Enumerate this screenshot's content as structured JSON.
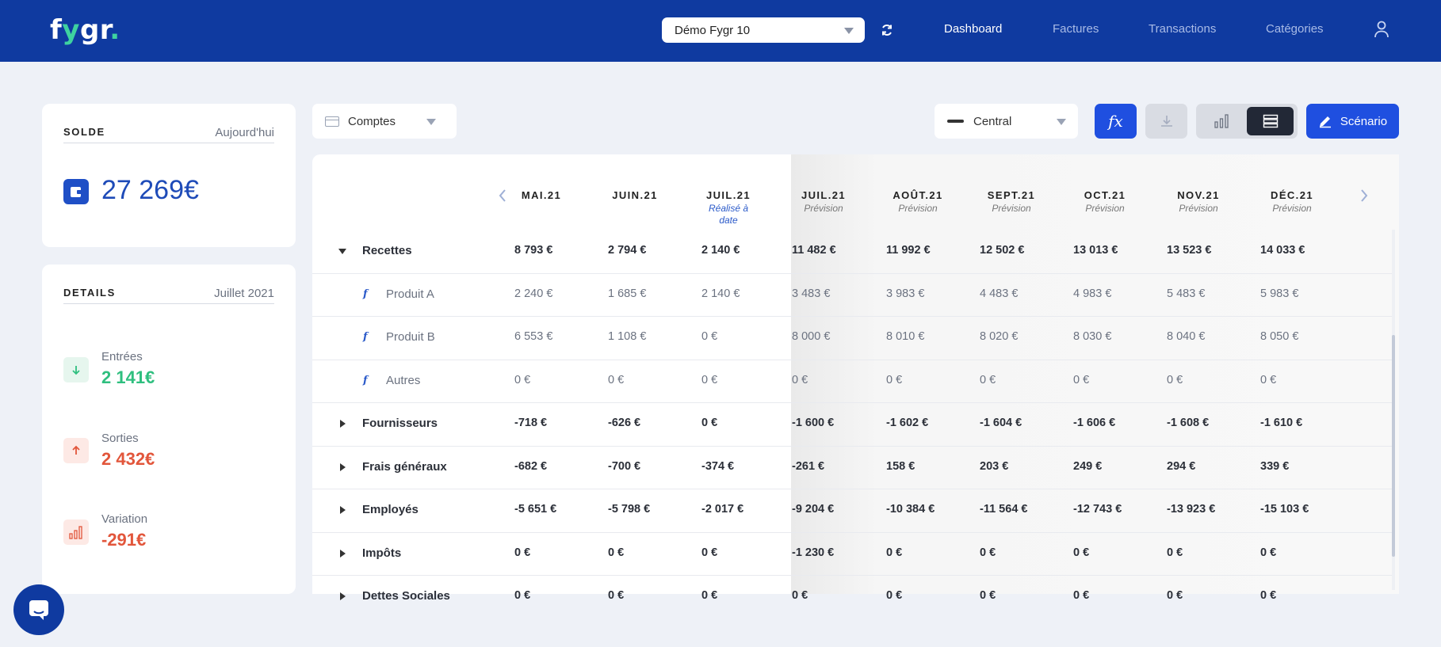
{
  "app": {
    "logo_main": "f",
    "logo_y": "y",
    "logo_rest": "gr",
    "logo_dot": "."
  },
  "header": {
    "company_value": "Démo Fygr 10",
    "nav": [
      {
        "label": "Dashboard",
        "active": true
      },
      {
        "label": "Factures"
      },
      {
        "label": "Transactions"
      },
      {
        "label": "Catégories"
      }
    ]
  },
  "solde": {
    "title": "SOLDE",
    "period": "Aujourd'hui",
    "amount": "27 269€"
  },
  "details": {
    "title": "DETAILS",
    "period": "Juillet 2021",
    "items": [
      {
        "label": "Entrées",
        "value": "2 141€",
        "color": "#2fbf7f"
      },
      {
        "label": "Sorties",
        "value": "2 432€",
        "color": "#e2563b"
      },
      {
        "label": "Variation",
        "value": "-291€",
        "color": "#e2563b"
      }
    ]
  },
  "toolbar": {
    "accounts_label": "Comptes",
    "scenario_select": "Central",
    "scenario_button": "Scénario",
    "fx_label": "fx"
  },
  "table": {
    "columns": [
      {
        "month": "MAI.21",
        "sub": ""
      },
      {
        "month": "JUIN.21",
        "sub": ""
      },
      {
        "month": "JUIL.21",
        "sub": "Réalisé à date"
      },
      {
        "month": "JUIL.21",
        "sub": "Prévision"
      },
      {
        "month": "AOÛT.21",
        "sub": "Prévision"
      },
      {
        "month": "SEPT.21",
        "sub": "Prévision"
      },
      {
        "month": "OCT.21",
        "sub": "Prévision"
      },
      {
        "month": "NOV.21",
        "sub": "Prévision"
      },
      {
        "month": "DÉC.21",
        "sub": "Prévision"
      }
    ],
    "rows": [
      {
        "label": "Recettes",
        "type": "group",
        "expanded": true,
        "values": [
          "8 793 €",
          "2 794 €",
          "2 140 €",
          "11 482 €",
          "11 992 €",
          "12 502 €",
          "13 013 €",
          "13 523 €",
          "14 033 €"
        ]
      },
      {
        "label": "Produit A",
        "type": "sub",
        "values": [
          "2 240 €",
          "1 685 €",
          "2 140 €",
          "3 483 €",
          "3 983 €",
          "4 483 €",
          "4 983 €",
          "5 483 €",
          "5 983 €"
        ]
      },
      {
        "label": "Produit B",
        "type": "sub",
        "values": [
          "6 553 €",
          "1 108 €",
          "0 €",
          "8 000 €",
          "8 010 €",
          "8 020 €",
          "8 030 €",
          "8 040 €",
          "8 050 €"
        ]
      },
      {
        "label": "Autres",
        "type": "sub",
        "values": [
          "0 €",
          "0 €",
          "0 €",
          "0 €",
          "0 €",
          "0 €",
          "0 €",
          "0 €",
          "0 €"
        ]
      },
      {
        "label": "Fournisseurs",
        "type": "group",
        "values": [
          "-718 €",
          "-626 €",
          "0 €",
          "-1 600 €",
          "-1 602 €",
          "-1 604 €",
          "-1 606 €",
          "-1 608 €",
          "-1 610 €"
        ]
      },
      {
        "label": "Frais généraux",
        "type": "group",
        "values": [
          "-682 €",
          "-700 €",
          "-374 €",
          "-261 €",
          "158 €",
          "203 €",
          "249 €",
          "294 €",
          "339 €"
        ]
      },
      {
        "label": "Employés",
        "type": "group",
        "values": [
          "-5 651 €",
          "-5 798 €",
          "-2 017 €",
          "-9 204 €",
          "-10 384 €",
          "-11 564 €",
          "-12 743 €",
          "-13 923 €",
          "-15 103 €"
        ]
      },
      {
        "label": "Impôts",
        "type": "group",
        "values": [
          "0 €",
          "0 €",
          "0 €",
          "-1 230 €",
          "0 €",
          "0 €",
          "0 €",
          "0 €",
          "0 €"
        ]
      },
      {
        "label": "Dettes Sociales",
        "type": "group",
        "values": [
          "0 €",
          "0 €",
          "0 €",
          "0 €",
          "0 €",
          "0 €",
          "0 €",
          "0 €",
          "0 €"
        ]
      }
    ]
  }
}
